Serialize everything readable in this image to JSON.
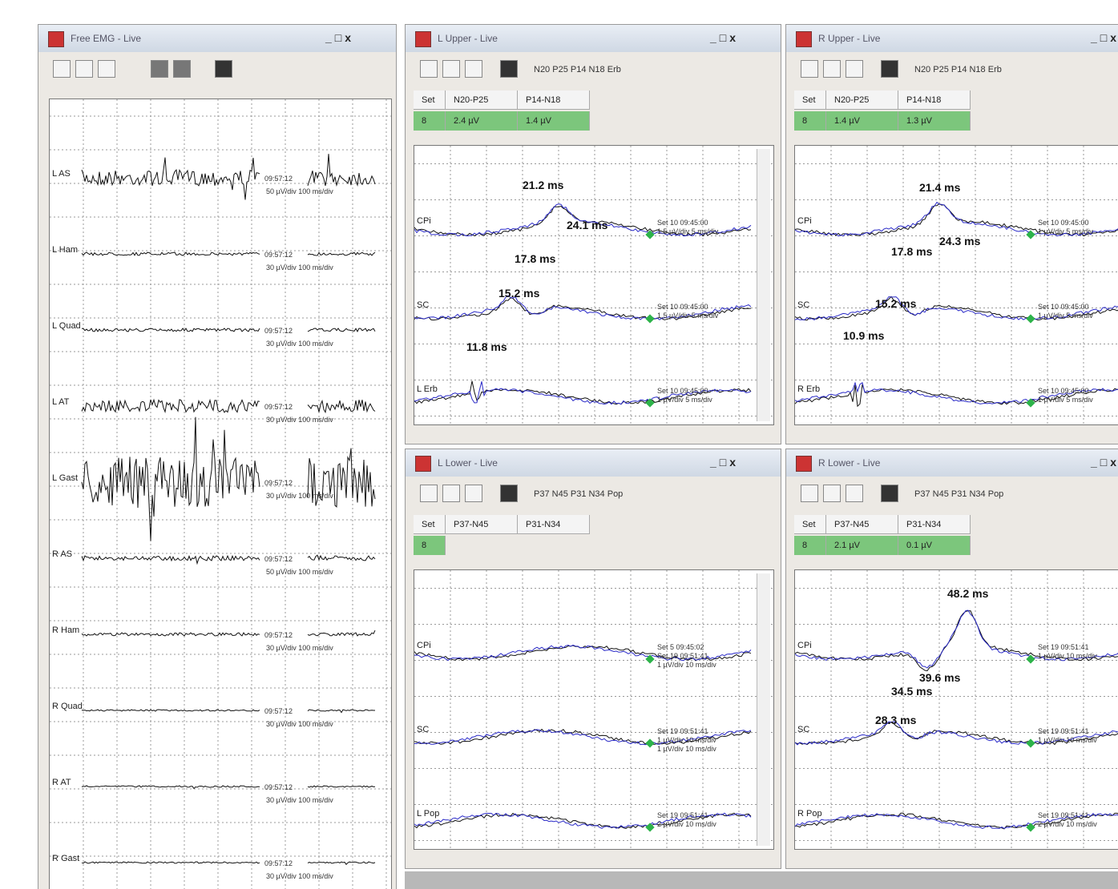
{
  "emg": {
    "title": "Free EMG - Live",
    "channels": [
      {
        "label": "L AS",
        "time": "09:57:12",
        "scale": "50 µV/div 100 ms/div"
      },
      {
        "label": "L Ham",
        "time": "09:57:12",
        "scale": "30 µV/div 100 ms/div"
      },
      {
        "label": "L Quad",
        "time": "09:57:12",
        "scale": "30 µV/div 100 ms/div"
      },
      {
        "label": "L AT",
        "time": "09:57:12",
        "scale": "30 µV/div 100 ms/div"
      },
      {
        "label": "L Gast",
        "time": "09:57:12",
        "scale": "30 µV/div 100 ms/div"
      },
      {
        "label": "R AS",
        "time": "09:57:12",
        "scale": "50 µV/div 100 ms/div"
      },
      {
        "label": "R Ham",
        "time": "09:57:12",
        "scale": "30 µV/div 100 ms/div"
      },
      {
        "label": "R Quad",
        "time": "09:57:12",
        "scale": "30 µV/div 100 ms/div"
      },
      {
        "label": "R AT",
        "time": "09:57:12",
        "scale": "30 µV/div 100 ms/div"
      },
      {
        "label": "R Gast",
        "time": "09:57:12",
        "scale": "30 µV/div 100 ms/div"
      }
    ]
  },
  "panels": [
    {
      "title": "L Upper - Live",
      "toolbar": "N20 P25 P14 N18 Erb",
      "header": [
        "Set",
        "N20-P25",
        "P14-N18"
      ],
      "row": [
        "8",
        "2.4 µV",
        "1.4 µV"
      ],
      "channels": [
        {
          "label": "CPi",
          "info": [
            "Set 10 09:45:00",
            "1.5 µV/div 5 ms/div"
          ]
        },
        {
          "label": "SC",
          "info": [
            "Set 10 09:45:00",
            "1.5 µV/div 5 ms/div"
          ]
        },
        {
          "label": "L Erb",
          "info": [
            "Set 10 09:45:00",
            "1 µV/div 5 ms/div"
          ]
        }
      ],
      "annotations": [
        "21.2 ms",
        "24.1 ms",
        "17.8 ms",
        "15.2 ms",
        "11.8 ms"
      ]
    },
    {
      "title": "R Upper - Live",
      "toolbar": "N20 P25 P14 N18 Erb",
      "header": [
        "Set",
        "N20-P25",
        "P14-N18"
      ],
      "row": [
        "8",
        "1.4 µV",
        "1.3 µV"
      ],
      "channels": [
        {
          "label": "CPi",
          "info": [
            "Set 10 09:45:00",
            "1 µV/div 5 ms/div"
          ]
        },
        {
          "label": "SC",
          "info": [
            "Set 10 09:45:00",
            "1 µV/div 5 ms/div"
          ]
        },
        {
          "label": "R Erb",
          "info": [
            "Set 10 09:45:00",
            "1 µV/div 5 ms/div"
          ]
        }
      ],
      "annotations": [
        "21.4 ms",
        "24.3 ms",
        "17.8 ms",
        "15.2 ms",
        "10.9 ms"
      ]
    },
    {
      "title": "L Lower - Live",
      "toolbar": "P37 N45 P31 N34 Pop",
      "header": [
        "Set",
        "P37-N45",
        "P31-N34"
      ],
      "row": [
        "8"
      ],
      "channels": [
        {
          "label": "CPi",
          "info": [
            "Set 5 09:45:02",
            "Set 19 09:51:41",
            "1 µV/div 10 ms/div"
          ]
        },
        {
          "label": "SC",
          "info": [
            "Set 19 09:51:41",
            "1 µV/div 10 ms/div",
            "1 µV/div 10 ms/div"
          ]
        },
        {
          "label": "L Pop",
          "info": [
            "Set 19 09:51:41",
            "2 µV/div 10 ms/div"
          ]
        }
      ],
      "annotations": []
    },
    {
      "title": "R Lower - Live",
      "toolbar": "P37 N45 P31 N34 Pop",
      "header": [
        "Set",
        "P37-N45",
        "P31-N34"
      ],
      "row": [
        "8",
        "2.1 µV",
        "0.1 µV"
      ],
      "channels": [
        {
          "label": "CPi",
          "info": [
            "Set 19 09:51:41",
            "1 µV/div 10 ms/div"
          ]
        },
        {
          "label": "SC",
          "info": [
            "Set 19 09:51:41",
            "1 µV/div 10 ms/div"
          ]
        },
        {
          "label": "R Pop",
          "info": [
            "Set 19 09:51:41",
            "2 µV/div 10 ms/div"
          ]
        }
      ],
      "annotations": [
        "48.2 ms",
        "39.6 ms",
        "34.5 ms",
        "28.3 ms"
      ]
    }
  ]
}
